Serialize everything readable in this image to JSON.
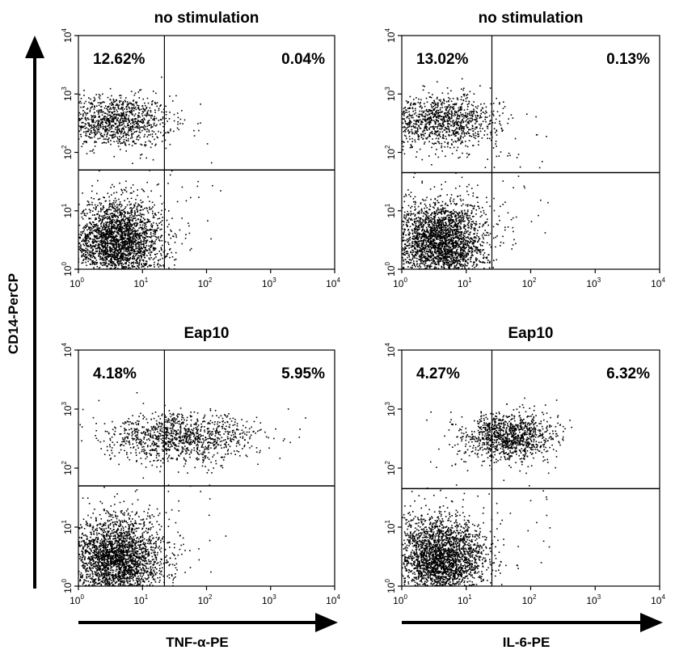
{
  "chart_data": {
    "type": "scatter",
    "x_axis_label": "",
    "y_axis_label": "CD14-PerCP",
    "scale": "log",
    "axis_range": [
      1,
      10000
    ],
    "tick_labels": [
      "10^0",
      "10^1",
      "10^2",
      "10^3",
      "10^4"
    ],
    "panels": [
      {
        "title": "no stimulation",
        "xlabel": "",
        "quadrant_gate": {
          "x": 22,
          "y": 50
        },
        "quadrant_labels": {
          "upper_left": "12.62%",
          "upper_right": "0.04%"
        },
        "populations": [
          {
            "name": "CD14 high / cytokine negative",
            "x_center": 3.5,
            "y_center": 350,
            "x_spread": 0.45,
            "y_spread": 0.22
          },
          {
            "name": "CD14 low",
            "x_center": 4,
            "y_center": 3,
            "x_spread": 0.35,
            "y_spread": 0.35
          }
        ]
      },
      {
        "title": "no stimulation",
        "xlabel": "",
        "quadrant_gate": {
          "x": 25,
          "y": 45
        },
        "quadrant_labels": {
          "upper_left": "13.02%",
          "upper_right": "0.13%"
        },
        "populations": [
          {
            "name": "CD14 high / cytokine negative",
            "x_center": 4,
            "y_center": 350,
            "x_spread": 0.45,
            "y_spread": 0.22
          },
          {
            "name": "CD14 low",
            "x_center": 4,
            "y_center": 3,
            "x_spread": 0.35,
            "y_spread": 0.35
          }
        ]
      },
      {
        "title": "Eap10",
        "xlabel": "",
        "quadrant_gate": {
          "x": 22,
          "y": 50
        },
        "quadrant_labels": {
          "upper_left": "4.18%",
          "upper_right": "5.95%"
        },
        "populations": [
          {
            "name": "CD14 high / TNF-alpha spread",
            "x_center": 40,
            "y_center": 330,
            "x_spread": 0.6,
            "y_spread": 0.2
          },
          {
            "name": "CD14 low",
            "x_center": 4,
            "y_center": 3,
            "x_spread": 0.35,
            "y_spread": 0.35
          }
        ]
      },
      {
        "title": "Eap10",
        "xlabel": "",
        "quadrant_gate": {
          "x": 25,
          "y": 45
        },
        "quadrant_labels": {
          "upper_left": "4.27%",
          "upper_right": "6.32%"
        },
        "populations": [
          {
            "name": "CD14 high / IL-6 positive",
            "x_center": 45,
            "y_center": 350,
            "x_spread": 0.35,
            "y_spread": 0.2
          },
          {
            "name": "CD14 low",
            "x_center": 4,
            "y_center": 3,
            "x_spread": 0.35,
            "y_spread": 0.35
          }
        ]
      }
    ]
  },
  "bottom_labels": {
    "left": "TNF-α-PE",
    "right": "IL-6-PE"
  }
}
